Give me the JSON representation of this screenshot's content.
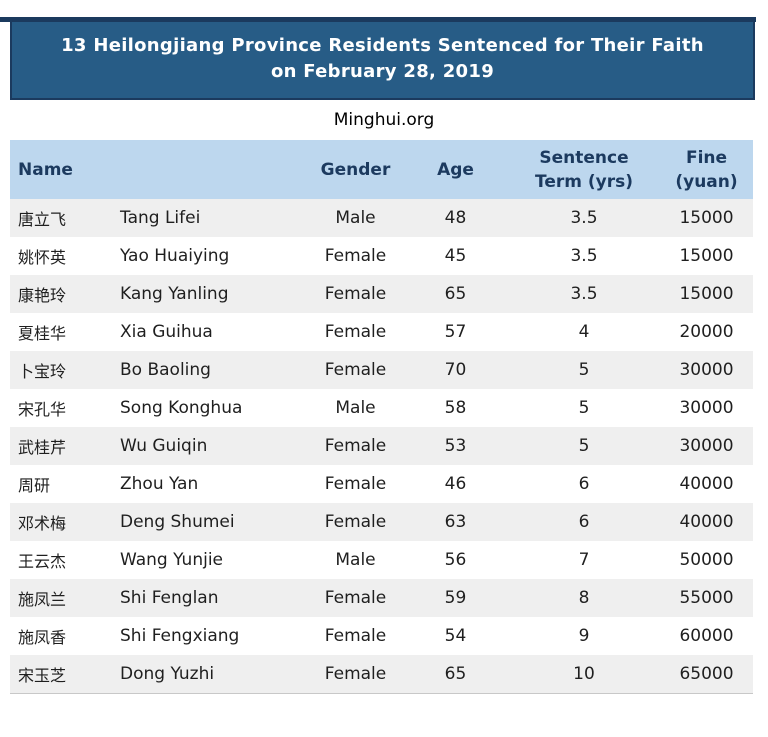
{
  "page": {
    "banner": {
      "line1": "13 Heilongjiang Province Residents Sentenced for Their Faith",
      "line2": "on February 28, 2019"
    },
    "source": "Minghui.org"
  },
  "table": {
    "headers": {
      "name": "Name",
      "gender": "Gender",
      "age": "Age",
      "sentence_line1": "Sentence",
      "sentence_line2": "Term (yrs)",
      "fine_line1": "Fine",
      "fine_line2": "(yuan)"
    },
    "rows": [
      {
        "cn": "唐立飞",
        "en": "Tang Lifei",
        "gender": "Male",
        "age": "48",
        "term": "3.5",
        "fine": "15000"
      },
      {
        "cn": "姚怀英",
        "en": "Yao Huaiying",
        "gender": "Female",
        "age": "45",
        "term": "3.5",
        "fine": "15000"
      },
      {
        "cn": "康艳玲",
        "en": "Kang Yanling",
        "gender": "Female",
        "age": "65",
        "term": "3.5",
        "fine": "15000"
      },
      {
        "cn": "夏桂华",
        "en": "Xia Guihua",
        "gender": "Female",
        "age": "57",
        "term": "4",
        "fine": "20000"
      },
      {
        "cn": "卜宝玲",
        "en": "Bo Baoling",
        "gender": "Female",
        "age": "70",
        "term": "5",
        "fine": "30000"
      },
      {
        "cn": "宋孔华",
        "en": "Song Konghua",
        "gender": "Male",
        "age": "58",
        "term": "5",
        "fine": "30000"
      },
      {
        "cn": "武桂芹",
        "en": "Wu Guiqin",
        "gender": "Female",
        "age": "53",
        "term": "5",
        "fine": "30000"
      },
      {
        "cn": "周研",
        "en": "Zhou Yan",
        "gender": "Female",
        "age": "46",
        "term": "6",
        "fine": "40000"
      },
      {
        "cn": "邓术梅",
        "en": "Deng Shumei",
        "gender": "Female",
        "age": "63",
        "term": "6",
        "fine": "40000"
      },
      {
        "cn": "王云杰",
        "en": "Wang Yunjie",
        "gender": "Male",
        "age": "56",
        "term": "7",
        "fine": "50000"
      },
      {
        "cn": "施凤兰",
        "en": "Shi Fenglan",
        "gender": "Female",
        "age": "59",
        "term": "8",
        "fine": "55000"
      },
      {
        "cn": "施凤香",
        "en": "Shi Fengxiang",
        "gender": "Female",
        "age": "54",
        "term": "9",
        "fine": "60000"
      },
      {
        "cn": "宋玉芝",
        "en": "Dong Yuzhi",
        "gender": "Female",
        "age": "65",
        "term": "10",
        "fine": "65000"
      }
    ]
  },
  "colors": {
    "top_bar": "#1b3a5e",
    "banner_bg": "#275c86",
    "banner_border": "#1b3a5e",
    "banner_text": "#ffffff",
    "header_bg": "#bdd7ee",
    "header_text": "#1c3a5f",
    "row_odd_bg": "#efefef",
    "row_even_bg": "#ffffff",
    "body_text": "#1f1f1f"
  },
  "chart_data": {
    "type": "table",
    "title": "13 Heilongjiang Province Residents Sentenced for Their Faith on February 28, 2019",
    "source": "Minghui.org",
    "columns": [
      "Name (Chinese)",
      "Name (English)",
      "Gender",
      "Age",
      "Sentence Term (yrs)",
      "Fine (yuan)"
    ],
    "rows": [
      [
        "唐立飞",
        "Tang Lifei",
        "Male",
        48,
        3.5,
        15000
      ],
      [
        "姚怀英",
        "Yao Huaiying",
        "Female",
        45,
        3.5,
        15000
      ],
      [
        "康艳玲",
        "Kang Yanling",
        "Female",
        65,
        3.5,
        15000
      ],
      [
        "夏桂华",
        "Xia Guihua",
        "Female",
        57,
        4,
        20000
      ],
      [
        "卜宝玲",
        "Bo Baoling",
        "Female",
        70,
        5,
        30000
      ],
      [
        "宋孔华",
        "Song Konghua",
        "Male",
        58,
        5,
        30000
      ],
      [
        "武桂芹",
        "Wu Guiqin",
        "Female",
        53,
        5,
        30000
      ],
      [
        "周研",
        "Zhou Yan",
        "Female",
        46,
        6,
        40000
      ],
      [
        "邓术梅",
        "Deng Shumei",
        "Female",
        63,
        6,
        40000
      ],
      [
        "王云杰",
        "Wang Yunjie",
        "Male",
        56,
        7,
        50000
      ],
      [
        "施凤兰",
        "Shi Fenglan",
        "Female",
        59,
        8,
        55000
      ],
      [
        "施凤香",
        "Shi Fengxiang",
        "Female",
        54,
        9,
        60000
      ],
      [
        "宋玉芝",
        "Dong Yuzhi",
        "Female",
        65,
        10,
        65000
      ]
    ]
  }
}
